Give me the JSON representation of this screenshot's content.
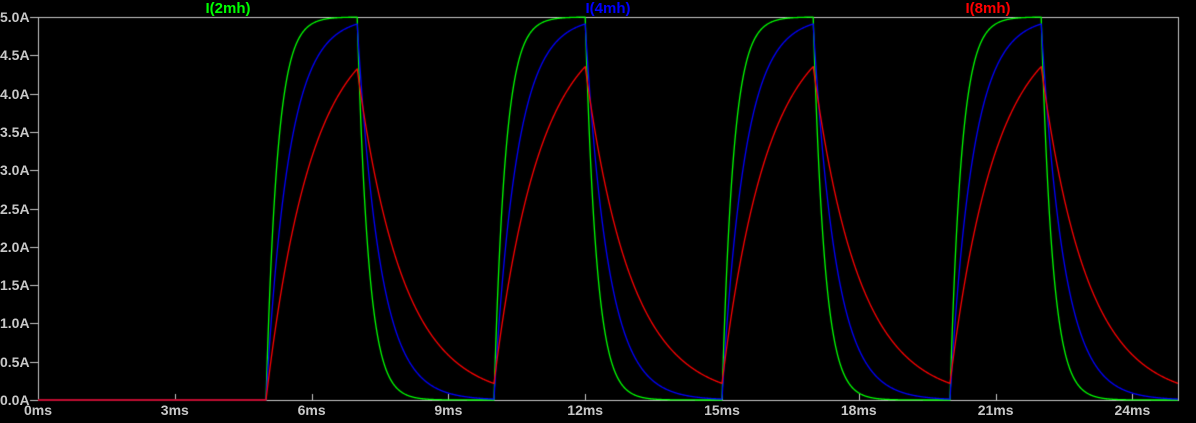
{
  "chart_data": {
    "type": "line",
    "title": "",
    "grid": false,
    "legend_position": "top",
    "background_color": "#000000",
    "axis_color": "#c8c8c8",
    "x_axis": {
      "unit": "ms",
      "range_ms": [
        0,
        25
      ],
      "ticks": [
        {
          "t": 0,
          "label": "0ms"
        },
        {
          "t": 3,
          "label": "3ms"
        },
        {
          "t": 6,
          "label": "6ms"
        },
        {
          "t": 9,
          "label": "9ms"
        },
        {
          "t": 12,
          "label": "12ms"
        },
        {
          "t": 15,
          "label": "15ms"
        },
        {
          "t": 18,
          "label": "18ms"
        },
        {
          "t": 21,
          "label": "21ms"
        },
        {
          "t": 24,
          "label": "24ms"
        }
      ]
    },
    "y_axis": {
      "unit": "A",
      "range_A": [
        0,
        5
      ],
      "ticks": [
        {
          "v": 5.0,
          "label": "5.0A"
        },
        {
          "v": 4.5,
          "label": "4.5A"
        },
        {
          "v": 4.0,
          "label": "4.0A"
        },
        {
          "v": 3.5,
          "label": "3.5A"
        },
        {
          "v": 3.0,
          "label": "3.0A"
        },
        {
          "v": 2.5,
          "label": "2.5A"
        },
        {
          "v": 2.0,
          "label": "2.0A"
        },
        {
          "v": 1.5,
          "label": "1.5A"
        },
        {
          "v": 1.0,
          "label": "1.0A"
        },
        {
          "v": 0.5,
          "label": "0.5A"
        },
        {
          "v": 0.0,
          "label": "0.0A"
        }
      ]
    },
    "pulse_drive": {
      "level_A": 5,
      "first_on_ms": 5,
      "on_duration_ms": 2,
      "off_duration_ms": 3,
      "period_ms": 5,
      "end_ms": 25,
      "on_times_ms": [
        5,
        10,
        15,
        20
      ],
      "off_times_ms": [
        7,
        12,
        17,
        22
      ]
    },
    "series": [
      {
        "name": "I(2mh)",
        "color": "#00ff00",
        "tau_ms": 0.25,
        "peak_A": 5.0,
        "residual_A": 0.0,
        "key_points_t_ms_I_A": [
          [
            0,
            0
          ],
          [
            5,
            0
          ],
          [
            7,
            5.0
          ],
          [
            10,
            0.0
          ],
          [
            12,
            5.0
          ],
          [
            15,
            0.0
          ],
          [
            17,
            5.0
          ],
          [
            20,
            0.0
          ],
          [
            22,
            5.0
          ],
          [
            25,
            0.0
          ]
        ]
      },
      {
        "name": "I(4mh)",
        "color": "#0000ff",
        "tau_ms": 0.5,
        "peak_A": 4.91,
        "residual_A": 0.01,
        "key_points_t_ms_I_A": [
          [
            0,
            0
          ],
          [
            5,
            0
          ],
          [
            7,
            4.91
          ],
          [
            10,
            0.01
          ],
          [
            12,
            4.91
          ],
          [
            15,
            0.01
          ],
          [
            17,
            4.91
          ],
          [
            20,
            0.01
          ],
          [
            22,
            4.91
          ],
          [
            25,
            0.01
          ]
        ]
      },
      {
        "name": "I(8mh)",
        "color": "#ff0000",
        "tau_ms": 1.0,
        "peak_A": 4.32,
        "residual_A": 0.22,
        "key_points_t_ms_I_A": [
          [
            0,
            0
          ],
          [
            5,
            0
          ],
          [
            7,
            4.32
          ],
          [
            10,
            0.22
          ],
          [
            12,
            4.35
          ],
          [
            15,
            0.22
          ],
          [
            17,
            4.35
          ],
          [
            20,
            0.22
          ],
          [
            22,
            4.35
          ],
          [
            25,
            0.22
          ]
        ]
      }
    ]
  }
}
